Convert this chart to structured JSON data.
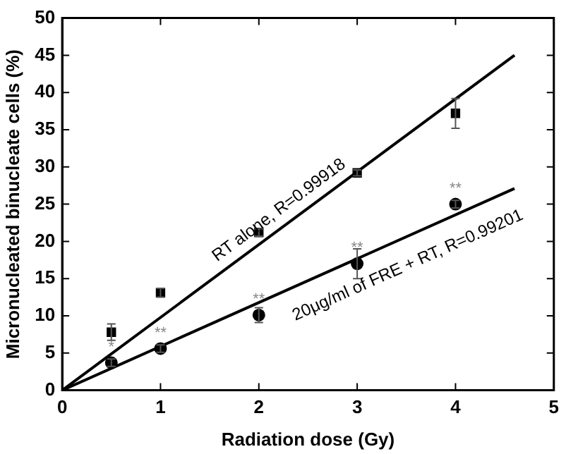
{
  "chart_data": {
    "type": "scatter",
    "xlabel": "Radiation dose (Gy)",
    "ylabel": "Micronucleated binucleate cells (%)",
    "xlim": [
      0,
      5
    ],
    "xticks": [
      0,
      1,
      2,
      3,
      4,
      5
    ],
    "ylim": [
      0,
      50
    ],
    "yticks": [
      0,
      5,
      10,
      15,
      20,
      25,
      30,
      35,
      40,
      45,
      50
    ],
    "grid": false,
    "legend": false,
    "series": [
      {
        "type": "scatter",
        "marker": "square",
        "color": "#000000",
        "x": [
          0.5,
          1,
          2,
          3,
          4
        ],
        "values": [
          7.8,
          13.1,
          21.2,
          29.2,
          37.2
        ],
        "errors": [
          1.1,
          0.6,
          0.5,
          0.4,
          2.0
        ]
      },
      {
        "type": "scatter",
        "marker": "circle",
        "color": "#000000",
        "x": [
          0.5,
          1,
          2,
          3,
          4
        ],
        "values": [
          3.7,
          5.6,
          10.1,
          17.0,
          25.0
        ],
        "errors": [
          0.5,
          0.5,
          1.0,
          2.0,
          0.5
        ]
      },
      {
        "type": "line",
        "marker": "none",
        "color": "#000000",
        "x": [
          0,
          4.6
        ],
        "values": [
          0,
          45.0
        ]
      },
      {
        "type": "line",
        "marker": "none",
        "color": "#000000",
        "x": [
          0,
          4.6
        ],
        "values": [
          0,
          27.1
        ]
      }
    ],
    "annotations": [
      "RT alone, R=0.99918",
      "20μg/ml of FRE + RT, R=0.99201",
      {
        "text": "*",
        "x": 0.5,
        "y": 3.7
      },
      {
        "text": "**",
        "x": 1,
        "y": 5.6
      },
      {
        "text": "**",
        "x": 2,
        "y": 10.1
      },
      {
        "text": "**",
        "x": 3,
        "y": 17.0
      },
      {
        "text": "**",
        "x": 4,
        "y": 25.0
      }
    ]
  }
}
